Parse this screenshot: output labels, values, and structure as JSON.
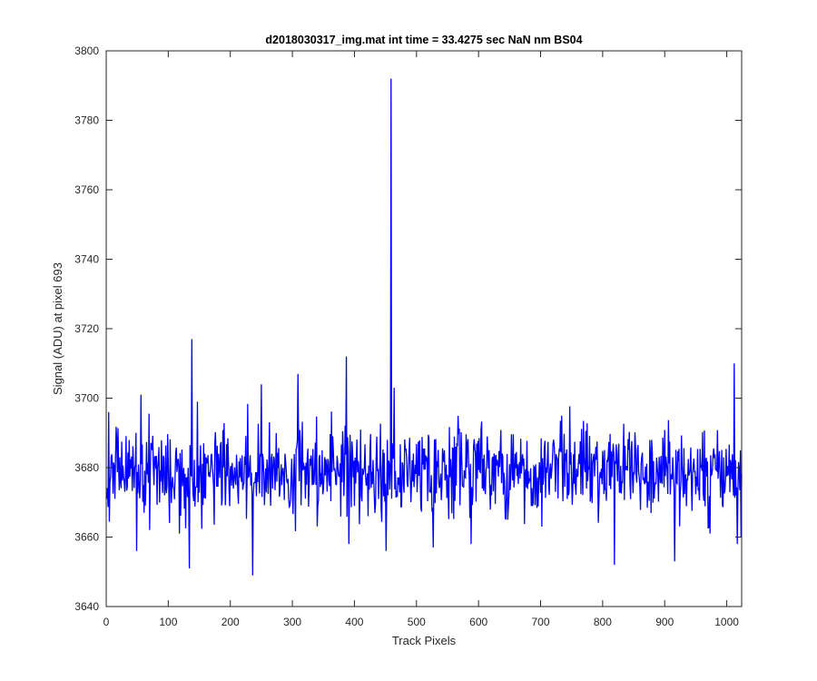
{
  "chart_data": {
    "type": "line",
    "title": "d2018030317_img.mat int time = 33.4275 sec  NaN nm BS04",
    "xlabel": "Track Pixels",
    "ylabel": "Signal (ADU) at pixel 693",
    "xlim": [
      0,
      1024
    ],
    "ylim": [
      3640,
      3800
    ],
    "xticks": [
      0,
      100,
      200,
      300,
      400,
      500,
      600,
      700,
      800,
      900,
      1000
    ],
    "yticks": [
      3640,
      3660,
      3680,
      3700,
      3720,
      3740,
      3760,
      3780,
      3800
    ],
    "grid": false,
    "line_color": "#0000ff",
    "series": [
      {
        "points_count": 1024,
        "baseline": 3679,
        "noise_amplitude": 9,
        "random_seed": 2018,
        "features": [
          {
            "x": 3,
            "y": 3696
          },
          {
            "x": 48,
            "y": 3656
          },
          {
            "x": 55,
            "y": 3701
          },
          {
            "x": 133,
            "y": 3651
          },
          {
            "x": 137,
            "y": 3717
          },
          {
            "x": 235,
            "y": 3649
          },
          {
            "x": 249,
            "y": 3704
          },
          {
            "x": 308,
            "y": 3707
          },
          {
            "x": 386,
            "y": 3712
          },
          {
            "x": 390,
            "y": 3658
          },
          {
            "x": 450,
            "y": 3656
          },
          {
            "x": 458,
            "y": 3792
          },
          {
            "x": 463,
            "y": 3703
          },
          {
            "x": 526,
            "y": 3657
          },
          {
            "x": 587,
            "y": 3658
          },
          {
            "x": 818,
            "y": 3652
          },
          {
            "x": 915,
            "y": 3653
          },
          {
            "x": 1011,
            "y": 3710
          },
          {
            "x": 1016,
            "y": 3658
          },
          {
            "x": 1022,
            "y": 3660
          }
        ]
      }
    ]
  }
}
